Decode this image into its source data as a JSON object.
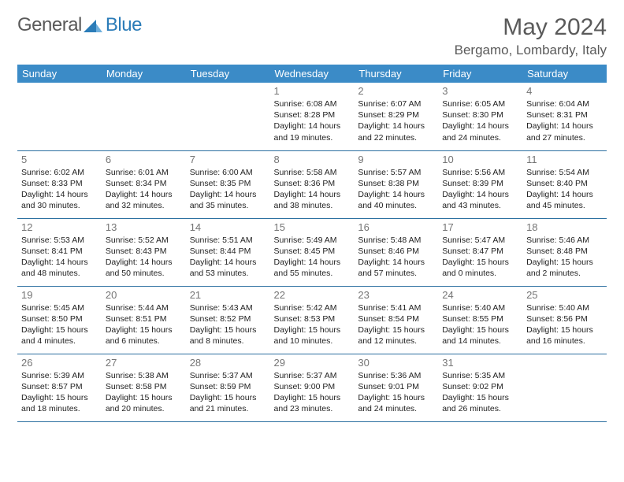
{
  "brand": {
    "word1": "General",
    "word2": "Blue"
  },
  "title": "May 2024",
  "location": "Bergamo, Lombardy, Italy",
  "colors": {
    "header_bg": "#3b8bc7",
    "header_text": "#ffffff",
    "border": "#2b6fa0",
    "daynum": "#757575",
    "body_text": "#222222",
    "title_text": "#5a5a5a",
    "logo_accent": "#2b7cb8"
  },
  "week_header_fontsize": 13,
  "daynum_fontsize": 13,
  "cell_fontsize": 10.5,
  "title_fontsize": 30,
  "location_fontsize": 17,
  "weekdays": [
    "Sunday",
    "Monday",
    "Tuesday",
    "Wednesday",
    "Thursday",
    "Friday",
    "Saturday"
  ],
  "weeks": [
    [
      null,
      null,
      null,
      {
        "d": "1",
        "sr": "6:08 AM",
        "ss": "8:28 PM",
        "dl": "14 hours and 19 minutes."
      },
      {
        "d": "2",
        "sr": "6:07 AM",
        "ss": "8:29 PM",
        "dl": "14 hours and 22 minutes."
      },
      {
        "d": "3",
        "sr": "6:05 AM",
        "ss": "8:30 PM",
        "dl": "14 hours and 24 minutes."
      },
      {
        "d": "4",
        "sr": "6:04 AM",
        "ss": "8:31 PM",
        "dl": "14 hours and 27 minutes."
      }
    ],
    [
      {
        "d": "5",
        "sr": "6:02 AM",
        "ss": "8:33 PM",
        "dl": "14 hours and 30 minutes."
      },
      {
        "d": "6",
        "sr": "6:01 AM",
        "ss": "8:34 PM",
        "dl": "14 hours and 32 minutes."
      },
      {
        "d": "7",
        "sr": "6:00 AM",
        "ss": "8:35 PM",
        "dl": "14 hours and 35 minutes."
      },
      {
        "d": "8",
        "sr": "5:58 AM",
        "ss": "8:36 PM",
        "dl": "14 hours and 38 minutes."
      },
      {
        "d": "9",
        "sr": "5:57 AM",
        "ss": "8:38 PM",
        "dl": "14 hours and 40 minutes."
      },
      {
        "d": "10",
        "sr": "5:56 AM",
        "ss": "8:39 PM",
        "dl": "14 hours and 43 minutes."
      },
      {
        "d": "11",
        "sr": "5:54 AM",
        "ss": "8:40 PM",
        "dl": "14 hours and 45 minutes."
      }
    ],
    [
      {
        "d": "12",
        "sr": "5:53 AM",
        "ss": "8:41 PM",
        "dl": "14 hours and 48 minutes."
      },
      {
        "d": "13",
        "sr": "5:52 AM",
        "ss": "8:43 PM",
        "dl": "14 hours and 50 minutes."
      },
      {
        "d": "14",
        "sr": "5:51 AM",
        "ss": "8:44 PM",
        "dl": "14 hours and 53 minutes."
      },
      {
        "d": "15",
        "sr": "5:49 AM",
        "ss": "8:45 PM",
        "dl": "14 hours and 55 minutes."
      },
      {
        "d": "16",
        "sr": "5:48 AM",
        "ss": "8:46 PM",
        "dl": "14 hours and 57 minutes."
      },
      {
        "d": "17",
        "sr": "5:47 AM",
        "ss": "8:47 PM",
        "dl": "15 hours and 0 minutes."
      },
      {
        "d": "18",
        "sr": "5:46 AM",
        "ss": "8:48 PM",
        "dl": "15 hours and 2 minutes."
      }
    ],
    [
      {
        "d": "19",
        "sr": "5:45 AM",
        "ss": "8:50 PM",
        "dl": "15 hours and 4 minutes."
      },
      {
        "d": "20",
        "sr": "5:44 AM",
        "ss": "8:51 PM",
        "dl": "15 hours and 6 minutes."
      },
      {
        "d": "21",
        "sr": "5:43 AM",
        "ss": "8:52 PM",
        "dl": "15 hours and 8 minutes."
      },
      {
        "d": "22",
        "sr": "5:42 AM",
        "ss": "8:53 PM",
        "dl": "15 hours and 10 minutes."
      },
      {
        "d": "23",
        "sr": "5:41 AM",
        "ss": "8:54 PM",
        "dl": "15 hours and 12 minutes."
      },
      {
        "d": "24",
        "sr": "5:40 AM",
        "ss": "8:55 PM",
        "dl": "15 hours and 14 minutes."
      },
      {
        "d": "25",
        "sr": "5:40 AM",
        "ss": "8:56 PM",
        "dl": "15 hours and 16 minutes."
      }
    ],
    [
      {
        "d": "26",
        "sr": "5:39 AM",
        "ss": "8:57 PM",
        "dl": "15 hours and 18 minutes."
      },
      {
        "d": "27",
        "sr": "5:38 AM",
        "ss": "8:58 PM",
        "dl": "15 hours and 20 minutes."
      },
      {
        "d": "28",
        "sr": "5:37 AM",
        "ss": "8:59 PM",
        "dl": "15 hours and 21 minutes."
      },
      {
        "d": "29",
        "sr": "5:37 AM",
        "ss": "9:00 PM",
        "dl": "15 hours and 23 minutes."
      },
      {
        "d": "30",
        "sr": "5:36 AM",
        "ss": "9:01 PM",
        "dl": "15 hours and 24 minutes."
      },
      {
        "d": "31",
        "sr": "5:35 AM",
        "ss": "9:02 PM",
        "dl": "15 hours and 26 minutes."
      },
      null
    ]
  ],
  "labels": {
    "sunrise": "Sunrise:",
    "sunset": "Sunset:",
    "daylight": "Daylight:"
  }
}
